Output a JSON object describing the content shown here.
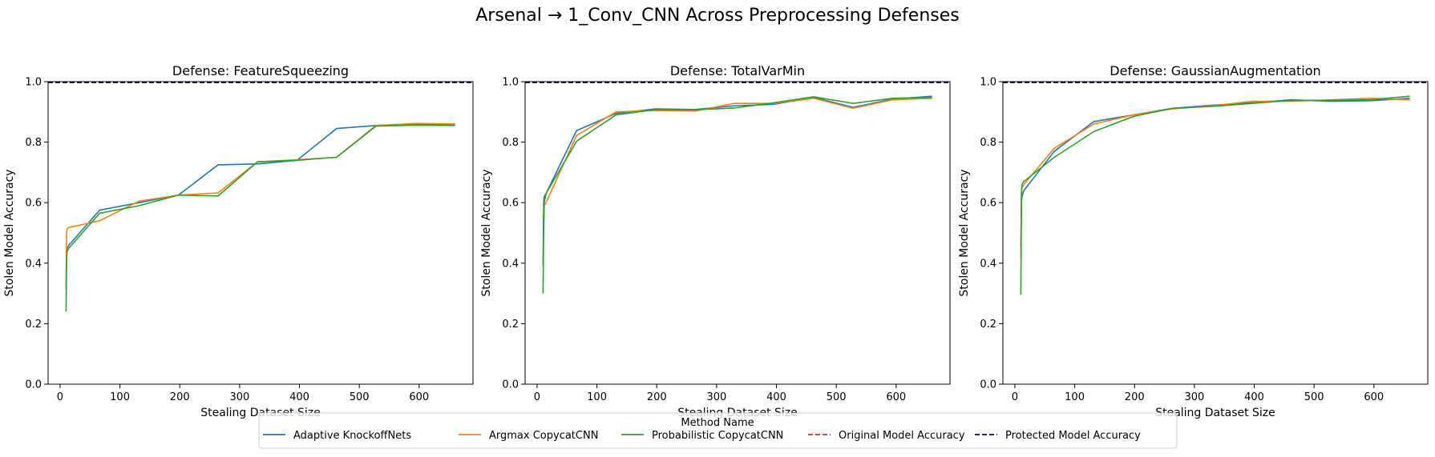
{
  "figure": {
    "title": "Arsenal → 1_Conv_CNN Across Preprocessing Defenses"
  },
  "legend": {
    "title": "Method Name",
    "entries": [
      {
        "label": "Adaptive KnockoffNets",
        "color": "#1f77b4",
        "style": "solid"
      },
      {
        "label": "Argmax CopycatCNN",
        "color": "#ff7f0e",
        "style": "solid"
      },
      {
        "label": "Probabilistic CopycatCNN",
        "color": "#2ca02c",
        "style": "solid"
      },
      {
        "label": "Original Model Accuracy",
        "color": "#d62728",
        "style": "dashed"
      },
      {
        "label": "Protected Model Accuracy",
        "color": "#000080",
        "style": "dashed"
      }
    ]
  },
  "chart_data": [
    {
      "type": "line",
      "title": "Defense: FeatureSqueezing",
      "xlabel": "Stealing Dataset Size",
      "ylabel": "Stolen Model Accuracy",
      "xlim": [
        -20,
        690
      ],
      "ylim": [
        0.0,
        1.0
      ],
      "xticks": [
        "0",
        "100",
        "200",
        "300",
        "400",
        "500",
        "600"
      ],
      "yticks": [
        "0.0",
        "0.2",
        "0.4",
        "0.6",
        "0.8",
        "1.0"
      ],
      "hlines": [
        {
          "name": "Original Model Accuracy",
          "y": 0.997,
          "color": "#d62728"
        },
        {
          "name": "Protected Model Accuracy",
          "y": 0.997,
          "color": "#000080"
        }
      ],
      "series": [
        {
          "name": "Adaptive KnockoffNets",
          "color": "#1f77b4",
          "x": [
            10,
            11,
            12,
            15,
            66,
            132,
            198,
            264,
            330,
            396,
            462,
            528,
            594,
            660
          ],
          "y": [
            0.31,
            0.43,
            0.45,
            0.46,
            0.575,
            0.6,
            0.625,
            0.725,
            0.728,
            0.74,
            0.845,
            0.855,
            0.86,
            0.858
          ]
        },
        {
          "name": "Argmax CopycatCNN",
          "color": "#ff7f0e",
          "x": [
            10,
            11,
            12,
            15,
            66,
            132,
            198,
            264,
            330,
            396,
            462,
            528,
            594,
            660
          ],
          "y": [
            0.33,
            0.5,
            0.515,
            0.518,
            0.54,
            0.605,
            0.625,
            0.632,
            0.735,
            0.742,
            0.75,
            0.855,
            0.862,
            0.86
          ]
        },
        {
          "name": "Probabilistic CopycatCNN",
          "color": "#2ca02c",
          "x": [
            10,
            11,
            12,
            15,
            66,
            132,
            198,
            264,
            330,
            396,
            462,
            528,
            594,
            660
          ],
          "y": [
            0.24,
            0.42,
            0.44,
            0.45,
            0.565,
            0.59,
            0.625,
            0.622,
            0.735,
            0.74,
            0.75,
            0.853,
            0.856,
            0.855
          ]
        }
      ]
    },
    {
      "type": "line",
      "title": "Defense: TotalVarMin",
      "xlabel": "Stealing Dataset Size",
      "ylabel": "Stolen Model Accuracy",
      "xlim": [
        -20,
        690
      ],
      "ylim": [
        0.0,
        1.0
      ],
      "xticks": [
        "0",
        "100",
        "200",
        "300",
        "400",
        "500",
        "600"
      ],
      "yticks": [
        "0.0",
        "0.2",
        "0.4",
        "0.6",
        "0.8",
        "1.0"
      ],
      "hlines": [
        {
          "name": "Original Model Accuracy",
          "y": 0.997,
          "color": "#d62728"
        },
        {
          "name": "Protected Model Accuracy",
          "y": 0.997,
          "color": "#000080"
        }
      ],
      "series": [
        {
          "name": "Adaptive KnockoffNets",
          "color": "#1f77b4",
          "x": [
            10,
            11,
            12,
            15,
            66,
            132,
            198,
            264,
            330,
            396,
            462,
            528,
            594,
            660
          ],
          "y": [
            0.39,
            0.6,
            0.62,
            0.63,
            0.838,
            0.895,
            0.91,
            0.908,
            0.92,
            0.925,
            0.948,
            0.915,
            0.942,
            0.952
          ]
        },
        {
          "name": "Argmax CopycatCNN",
          "color": "#ff7f0e",
          "x": [
            10,
            11,
            12,
            15,
            66,
            132,
            198,
            264,
            330,
            396,
            462,
            528,
            594,
            660
          ],
          "y": [
            0.55,
            0.58,
            0.59,
            0.6,
            0.822,
            0.9,
            0.905,
            0.903,
            0.928,
            0.928,
            0.945,
            0.912,
            0.94,
            0.945
          ]
        },
        {
          "name": "Probabilistic CopycatCNN",
          "color": "#2ca02c",
          "x": [
            10,
            11,
            12,
            15,
            66,
            132,
            198,
            264,
            330,
            396,
            462,
            528,
            594,
            660
          ],
          "y": [
            0.3,
            0.5,
            0.6,
            0.63,
            0.803,
            0.89,
            0.908,
            0.907,
            0.913,
            0.93,
            0.95,
            0.928,
            0.945,
            0.948
          ]
        }
      ]
    },
    {
      "type": "line",
      "title": "Defense: GaussianAugmentation",
      "xlabel": "Stealing Dataset Size",
      "ylabel": "Stolen Model Accuracy",
      "xlim": [
        -20,
        690
      ],
      "ylim": [
        0.0,
        1.0
      ],
      "xticks": [
        "0",
        "100",
        "200",
        "300",
        "400",
        "500",
        "600"
      ],
      "yticks": [
        "0.0",
        "0.2",
        "0.4",
        "0.6",
        "0.8",
        "1.0"
      ],
      "hlines": [
        {
          "name": "Original Model Accuracy",
          "y": 0.997,
          "color": "#d62728"
        },
        {
          "name": "Protected Model Accuracy",
          "y": 0.997,
          "color": "#000080"
        }
      ],
      "series": [
        {
          "name": "Adaptive KnockoffNets",
          "color": "#1f77b4",
          "x": [
            10,
            11,
            12,
            15,
            66,
            132,
            198,
            264,
            330,
            396,
            462,
            528,
            594,
            660
          ],
          "y": [
            0.45,
            0.6,
            0.62,
            0.64,
            0.77,
            0.868,
            0.89,
            0.912,
            0.922,
            0.93,
            0.94,
            0.935,
            0.937,
            0.945
          ]
        },
        {
          "name": "Argmax CopycatCNN",
          "color": "#ff7f0e",
          "x": [
            10,
            11,
            12,
            15,
            66,
            132,
            198,
            264,
            330,
            396,
            462,
            528,
            594,
            660
          ],
          "y": [
            0.42,
            0.63,
            0.65,
            0.66,
            0.78,
            0.86,
            0.89,
            0.91,
            0.92,
            0.935,
            0.935,
            0.94,
            0.945,
            0.94
          ]
        },
        {
          "name": "Probabilistic CopycatCNN",
          "color": "#2ca02c",
          "x": [
            10,
            11,
            12,
            15,
            66,
            132,
            198,
            264,
            330,
            396,
            462,
            528,
            594,
            660
          ],
          "y": [
            0.295,
            0.63,
            0.66,
            0.67,
            0.75,
            0.835,
            0.885,
            0.912,
            0.918,
            0.928,
            0.938,
            0.938,
            0.94,
            0.952
          ]
        }
      ]
    }
  ]
}
